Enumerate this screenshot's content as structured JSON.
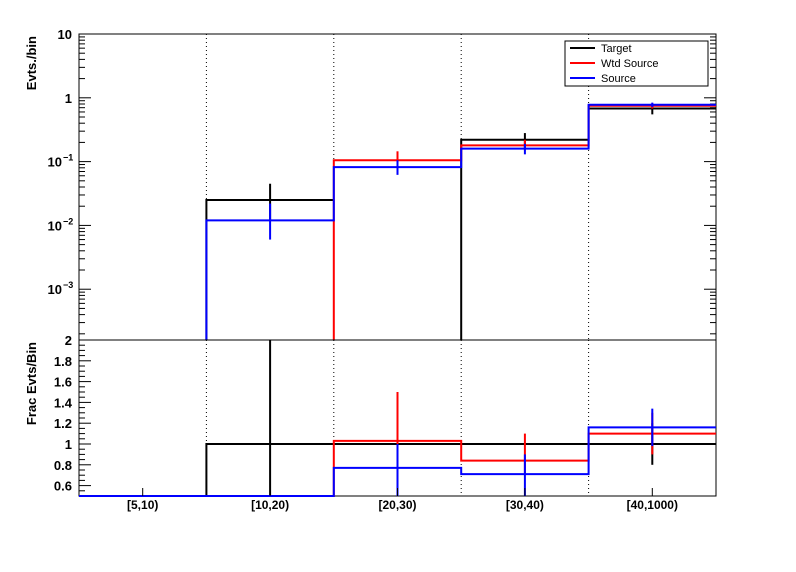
{
  "chart_data": [
    {
      "type": "line",
      "panel": "top",
      "ylabel": "Evts./bin",
      "yscale": "log",
      "ylim": [
        0.00016,
        10
      ],
      "yticks": [
        {
          "value": 10,
          "label": "10"
        },
        {
          "value": 1,
          "label": "1"
        },
        {
          "value": 0.1,
          "label": "10",
          "exp": "−1"
        },
        {
          "value": 0.01,
          "label": "10",
          "exp": "−2"
        },
        {
          "value": 0.001,
          "label": "10",
          "exp": "−3"
        }
      ],
      "categories": [
        "[5,10)",
        "[10,20)",
        "[20,30)",
        "[30,40)",
        "[40,1000)"
      ],
      "legend_position": "top-right",
      "series": [
        {
          "name": "Target",
          "color": "#000000",
          "values": [
            null,
            0.025,
            null,
            0.22,
            0.68
          ],
          "err_low": [
            null,
            0.012,
            null,
            0.16,
            0.55
          ],
          "err_high": [
            null,
            0.045,
            null,
            0.28,
            0.8
          ]
        },
        {
          "name": "Wtd Source",
          "color": "#ff0000",
          "values": [
            null,
            null,
            0.105,
            0.18,
            0.75
          ],
          "err_low": [
            null,
            null,
            0.075,
            0.15,
            0.68
          ],
          "err_high": [
            null,
            null,
            0.145,
            0.22,
            0.82
          ]
        },
        {
          "name": "Source",
          "color": "#0000ff",
          "values": [
            null,
            0.012,
            0.082,
            0.16,
            0.78
          ],
          "err_low": [
            null,
            0.006,
            0.062,
            0.13,
            0.72
          ],
          "err_high": [
            null,
            0.022,
            0.105,
            0.19,
            0.84
          ]
        }
      ]
    },
    {
      "type": "line",
      "panel": "bottom",
      "ylabel": "Frac Evts/Bin",
      "ylim": [
        0.5,
        2
      ],
      "yticks": [
        {
          "value": 2,
          "label": "2"
        },
        {
          "value": 1.8,
          "label": "1.8"
        },
        {
          "value": 1.6,
          "label": "1.6"
        },
        {
          "value": 1.4,
          "label": "1.4"
        },
        {
          "value": 1.2,
          "label": "1.2"
        },
        {
          "value": 1,
          "label": "1"
        },
        {
          "value": 0.8,
          "label": "0.8"
        },
        {
          "value": 0.6,
          "label": "0.6"
        }
      ],
      "categories": [
        "[5,10)",
        "[10,20)",
        "[20,30)",
        "[30,40)",
        "[40,1000)"
      ],
      "series": [
        {
          "name": "Target",
          "color": "#000000",
          "values": [
            0.5,
            1.0,
            1.0,
            1.0,
            1.0
          ],
          "err_low": [
            null,
            0.5,
            null,
            null,
            0.8
          ],
          "err_high": [
            null,
            2.0,
            null,
            null,
            1.2
          ]
        },
        {
          "name": "Wtd Source",
          "color": "#ff0000",
          "values": [
            0.5,
            0.5,
            1.03,
            0.84,
            1.1
          ],
          "err_low": [
            null,
            null,
            0.6,
            0.72,
            0.9
          ],
          "err_high": [
            null,
            null,
            1.5,
            1.1,
            1.3
          ]
        },
        {
          "name": "Source",
          "color": "#0000ff",
          "values": [
            0.5,
            0.5,
            0.77,
            0.71,
            1.16
          ],
          "err_low": [
            null,
            null,
            0.5,
            0.5,
            0.98
          ],
          "err_high": [
            null,
            null,
            1.0,
            0.9,
            1.34
          ]
        }
      ]
    }
  ]
}
